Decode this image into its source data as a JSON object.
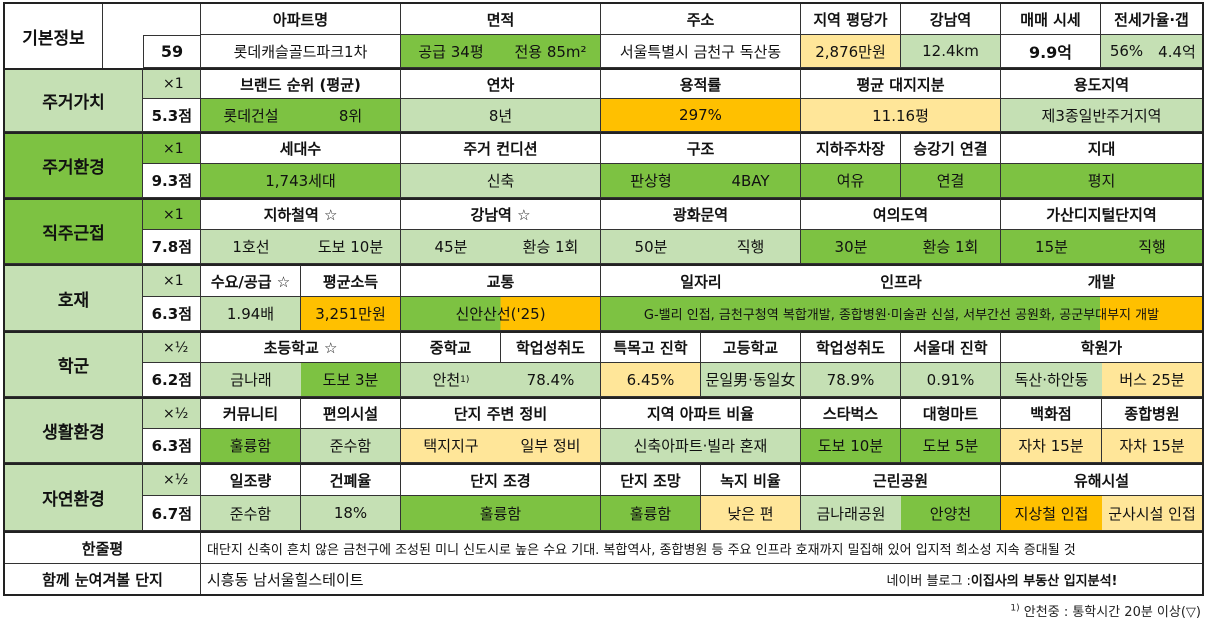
{
  "basic": {
    "label": "기본정보",
    "number": "59",
    "headers": [
      "아파트명",
      "면적",
      "주소",
      "지역 평당가",
      "강남역",
      "매매 시세",
      "전세가율·갭"
    ],
    "name": "롯데캐슬골드파크1차",
    "area_supply": "공급 34평",
    "area_exclusive": "전용 85m²",
    "address": "서울특별시 금천구 독산동",
    "price_per_pyeong": "2,876만원",
    "gangnam_dist": "12.4km",
    "sale_price": "9.9억",
    "jeonse_ratio": "56%",
    "gap": "4.4억"
  },
  "rows": [
    {
      "category": "주거가치",
      "multiplier": "×1",
      "score": "5.3점",
      "headers": [
        "브랜드 순위 (평균)",
        "연차",
        "용적률",
        "평균 대지지분",
        "용도지역"
      ],
      "values": [
        "롯데건설",
        "8위",
        "8년",
        "297%",
        "11.16평",
        "제3종일반주거지역"
      ]
    },
    {
      "category": "주거환경",
      "multiplier": "×1",
      "score": "9.3점",
      "headers": [
        "세대수",
        "주거 컨디션",
        "구조",
        "지하주차장",
        "승강기 연결",
        "지대"
      ],
      "values": [
        "1,743세대",
        "신축",
        "판상형",
        "4BAY",
        "여유",
        "연결",
        "평지"
      ]
    },
    {
      "category": "직주근접",
      "multiplier": "×1",
      "score": "7.8점",
      "headers": [
        "지하철역 ☆",
        "강남역 ☆",
        "광화문역",
        "여의도역",
        "가산디지털단지역"
      ],
      "values": [
        "1호선",
        "도보 10분",
        "45분",
        "환승 1회",
        "50분",
        "직행",
        "30분",
        "환승 1회",
        "15분",
        "직행"
      ]
    },
    {
      "category": "호재",
      "multiplier": "×1",
      "score": "6.3점",
      "headers": [
        "수요/공급 ☆",
        "평균소득",
        "교통",
        "일자리",
        "인프라",
        "개발"
      ],
      "values": [
        "1.94배",
        "3,251만원",
        "신안산선('25)",
        "G-밸리 인접, 금천구청역 복합개발, 종합병원·미술관 신설, 서부간선 공원화, 공군부대부지 개발"
      ]
    },
    {
      "category": "학군",
      "multiplier": "×½",
      "score": "6.2점",
      "headers": [
        "초등학교 ☆",
        "중학교",
        "학업성취도",
        "특목고 진학",
        "고등학교",
        "학업성취도",
        "서울대 진학",
        "학원가"
      ],
      "values": [
        "금나래",
        "도보 3분",
        "안천",
        "78.4%",
        "6.45%",
        "문일男·동일女",
        "78.9%",
        "0.91%",
        "독산·하안동",
        "버스 25분"
      ],
      "middle_school_sup": "1)"
    },
    {
      "category": "생활환경",
      "multiplier": "×½",
      "score": "6.3점",
      "headers": [
        "커뮤니티",
        "편의시설",
        "단지 주변 정비",
        "지역 아파트 비율",
        "스타벅스",
        "대형마트",
        "백화점",
        "종합병원"
      ],
      "values": [
        "훌륭함",
        "준수함",
        "택지지구",
        "일부 정비",
        "신축아파트·빌라 혼재",
        "도보 10분",
        "도보 5분",
        "자차 15분",
        "자차 15분"
      ]
    },
    {
      "category": "자연환경",
      "multiplier": "×½",
      "score": "6.7점",
      "headers": [
        "일조량",
        "건폐율",
        "단지 조경",
        "단지 조망",
        "녹지 비율",
        "근린공원",
        "유해시설"
      ],
      "values": [
        "준수함",
        "18%",
        "훌륭함",
        "훌륭함",
        "낮은 편",
        "금나래공원",
        "안양천",
        "지상철 인접",
        "군사시설 인접"
      ]
    }
  ],
  "summary": {
    "label": "한줄평",
    "text": "대단지 신축이 흔치 않은 금천구에 조성된 미니 신도시로 높은 수요 기대. 복합역사, 종합병원 등 주요 인프라 호재까지 밀집해 있어 입지적 희소성 지속 증대될 것"
  },
  "related": {
    "label": "함께 눈여겨볼 단지",
    "text": "시흥동 남서울힐스테이트",
    "blog_prefix": "네이버 블로그 : ",
    "blog_name": "이집사의 부동산 입지분석!"
  },
  "footnote": {
    "sup": "1)",
    "text": " 안천중 : 통학시간 20분 이상(▽)"
  },
  "colors": {
    "light_green": "#c5e0b4",
    "green": "#7dc242",
    "light_yellow": "#ffe699",
    "orange": "#ffc000"
  }
}
